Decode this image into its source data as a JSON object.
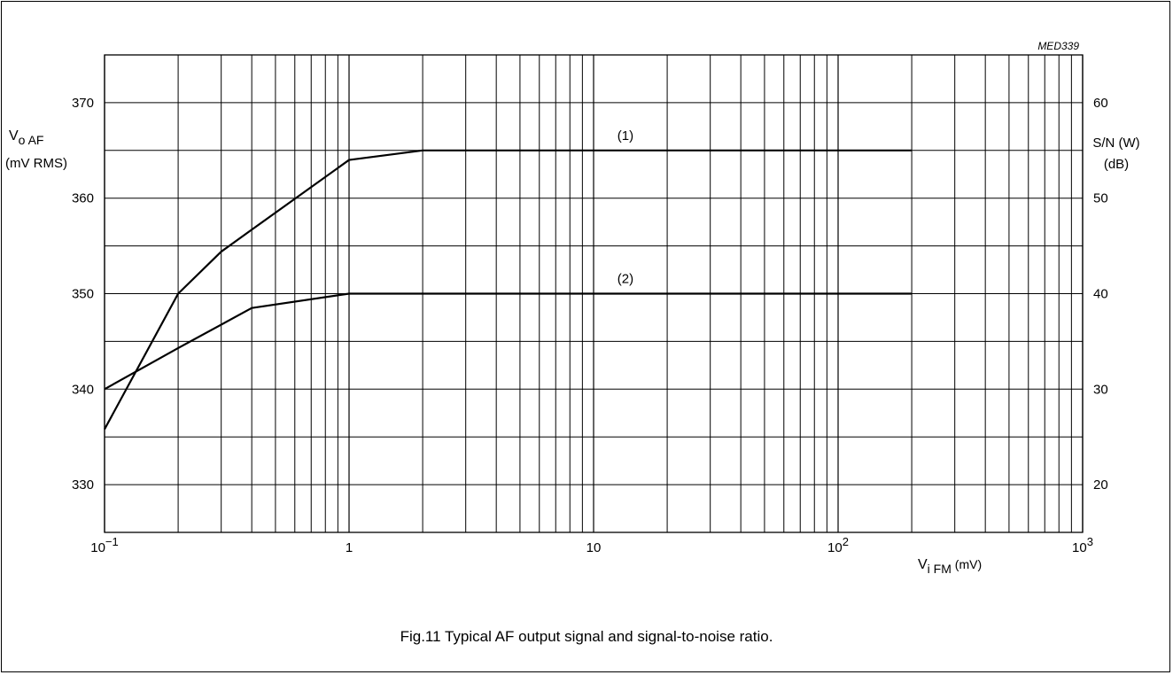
{
  "chart_data": {
    "type": "line",
    "figure_code": "MED339",
    "caption": "Fig.11  Typical AF output signal and signal-to-noise ratio.",
    "x_axis": {
      "scale": "log",
      "range": [
        0.1,
        1000
      ],
      "label_main": "V",
      "label_sub": "i FM",
      "label_unit": " (mV)",
      "tick_labels": [
        {
          "value": 0.1,
          "base": "10",
          "exp": "−1"
        },
        {
          "value": 1,
          "base": "1",
          "exp": ""
        },
        {
          "value": 10,
          "base": "10",
          "exp": ""
        },
        {
          "value": 100,
          "base": "10",
          "exp": "2"
        },
        {
          "value": 1000,
          "base": "10",
          "exp": "3"
        }
      ]
    },
    "y_left": {
      "range": [
        325,
        375
      ],
      "label_main": "V",
      "label_sub": "o AF",
      "label_unit": "(mV RMS)",
      "tick_values": [
        330,
        340,
        350,
        360,
        370
      ],
      "tick_labels": [
        "330",
        "340",
        "350",
        "360",
        "370"
      ]
    },
    "y_right": {
      "range": [
        15,
        65
      ],
      "label_line1": "S/N (W)",
      "label_line2": "(dB)",
      "tick_values": [
        20,
        30,
        40,
        50,
        60
      ],
      "tick_labels": [
        "20",
        "30",
        "40",
        "50",
        "60"
      ]
    },
    "grid": true,
    "series": [
      {
        "name": "(1)",
        "label_x": 13.5,
        "points": [
          [
            0.1,
            335.8
          ],
          [
            0.2,
            350
          ],
          [
            0.3,
            354.4
          ],
          [
            0.4,
            356.7
          ],
          [
            1,
            364
          ],
          [
            2,
            365
          ],
          [
            200,
            365
          ]
        ]
      },
      {
        "name": "(2)",
        "label_x": 13.5,
        "points": [
          [
            0.1,
            340
          ],
          [
            0.2,
            344.3
          ],
          [
            0.4,
            348.5
          ],
          [
            1,
            350
          ],
          [
            200,
            350
          ]
        ]
      }
    ]
  }
}
